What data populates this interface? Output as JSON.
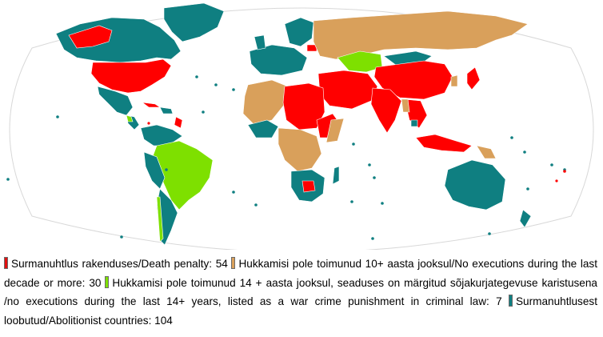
{
  "map": {
    "colors": {
      "ocean": "#ffffff",
      "death_penalty": "#ff0000",
      "no_executions_10": "#d9a05b",
      "no_executions_14": "#7ee000",
      "abolitionist": "#0f7f81",
      "border": "#ffffff",
      "outline": "#c8c8c8"
    }
  },
  "legend": {
    "items": [
      {
        "label": "Surmanuhtlus rakenduses/Death penalty: 54",
        "color": "#e01010"
      },
      {
        "label": "Hukkamisi pole toimunud 10+ aasta jooksul/No executions during the last decade or more: 30",
        "color": "#d9a05b"
      },
      {
        "label": "Hukkamisi pole toimunud 14 + aasta jooksul, seaduses on märgitud sõjakurjategevuse karistusena /no executions during the last 14+ years, listed as a war crime punishment in criminal law: 7",
        "color": "#7ee000"
      },
      {
        "label": "Surmanuhtlusest loobutud/Abolitionist countries: 104",
        "color": "#0f7f81"
      }
    ]
  }
}
